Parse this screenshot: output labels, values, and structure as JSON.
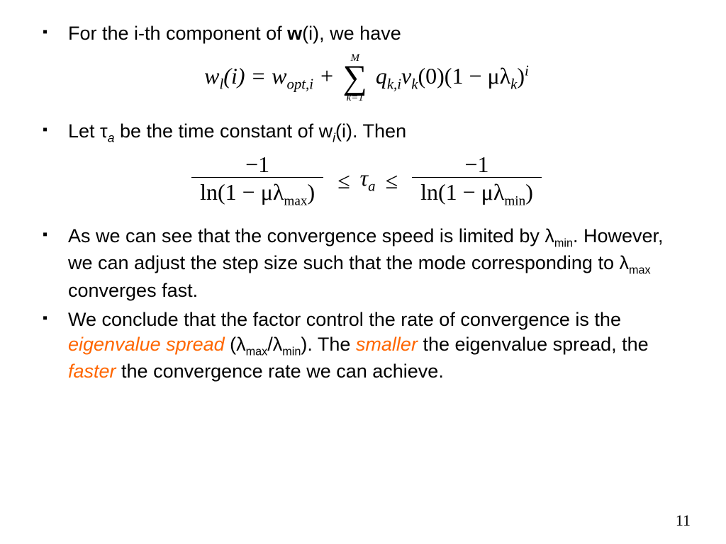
{
  "colors": {
    "text": "#000000",
    "highlight": "#ff6600",
    "background": "#ffffff"
  },
  "fonts": {
    "body_family": "Arial",
    "body_size_pt": 27,
    "math_family": "Times New Roman",
    "math_size_pt": 32
  },
  "bullets": {
    "b1": {
      "pre": "For the i-th component of ",
      "bold": "w",
      "post": "(i), we have"
    },
    "b2": {
      "pre": "Let τ",
      "sub1": "a",
      "mid": " be the time constant of w",
      "sub2": "i",
      "post": "(i). Then"
    },
    "b3": {
      "l1a": "As we can see that the convergence speed is limited by λ",
      "l1sub": "min",
      "l1b": ". However, we can adjust the step size such that the mode corresponding to λ",
      "l1sub2": "max",
      "l1c": " converges fast."
    },
    "b4": {
      "a": "We conclude that the factor control the rate of convergence is the ",
      "hl1": "eigenvalue spread",
      "b": " (λ",
      "sub1": "max",
      "c": "/λ",
      "sub2": "min",
      "d": "). The ",
      "hl2": "smaller",
      "e": " the eigenvalue spread, the ",
      "hl3": "faster",
      "f": " the convergence rate we can achieve."
    }
  },
  "equations": {
    "eq1": {
      "lhs": "w",
      "lhs_sub": "l",
      "lhs_arg": "(i) = w",
      "opt_sub": "opt,i",
      "plus": " + ",
      "sum_top": "M",
      "sum_bot": "k=1",
      "term_q": "q",
      "term_q_sub": "k,i",
      "term_v": "v",
      "term_v_sub": "k",
      "zero": "(0)(1 − μλ",
      "lam_sub": "k",
      "close": ")",
      "sup": "i"
    },
    "eq2": {
      "num": "−1",
      "den_left_a": "ln(1 − μλ",
      "den_left_sub": "max",
      "den_left_b": ")",
      "rel1": "≤",
      "mid": "τ",
      "mid_sub": "a",
      "rel2": "≤",
      "den_right_a": "ln(1 − μλ",
      "den_right_sub": "min",
      "den_right_b": ")"
    }
  },
  "page_number": "11"
}
